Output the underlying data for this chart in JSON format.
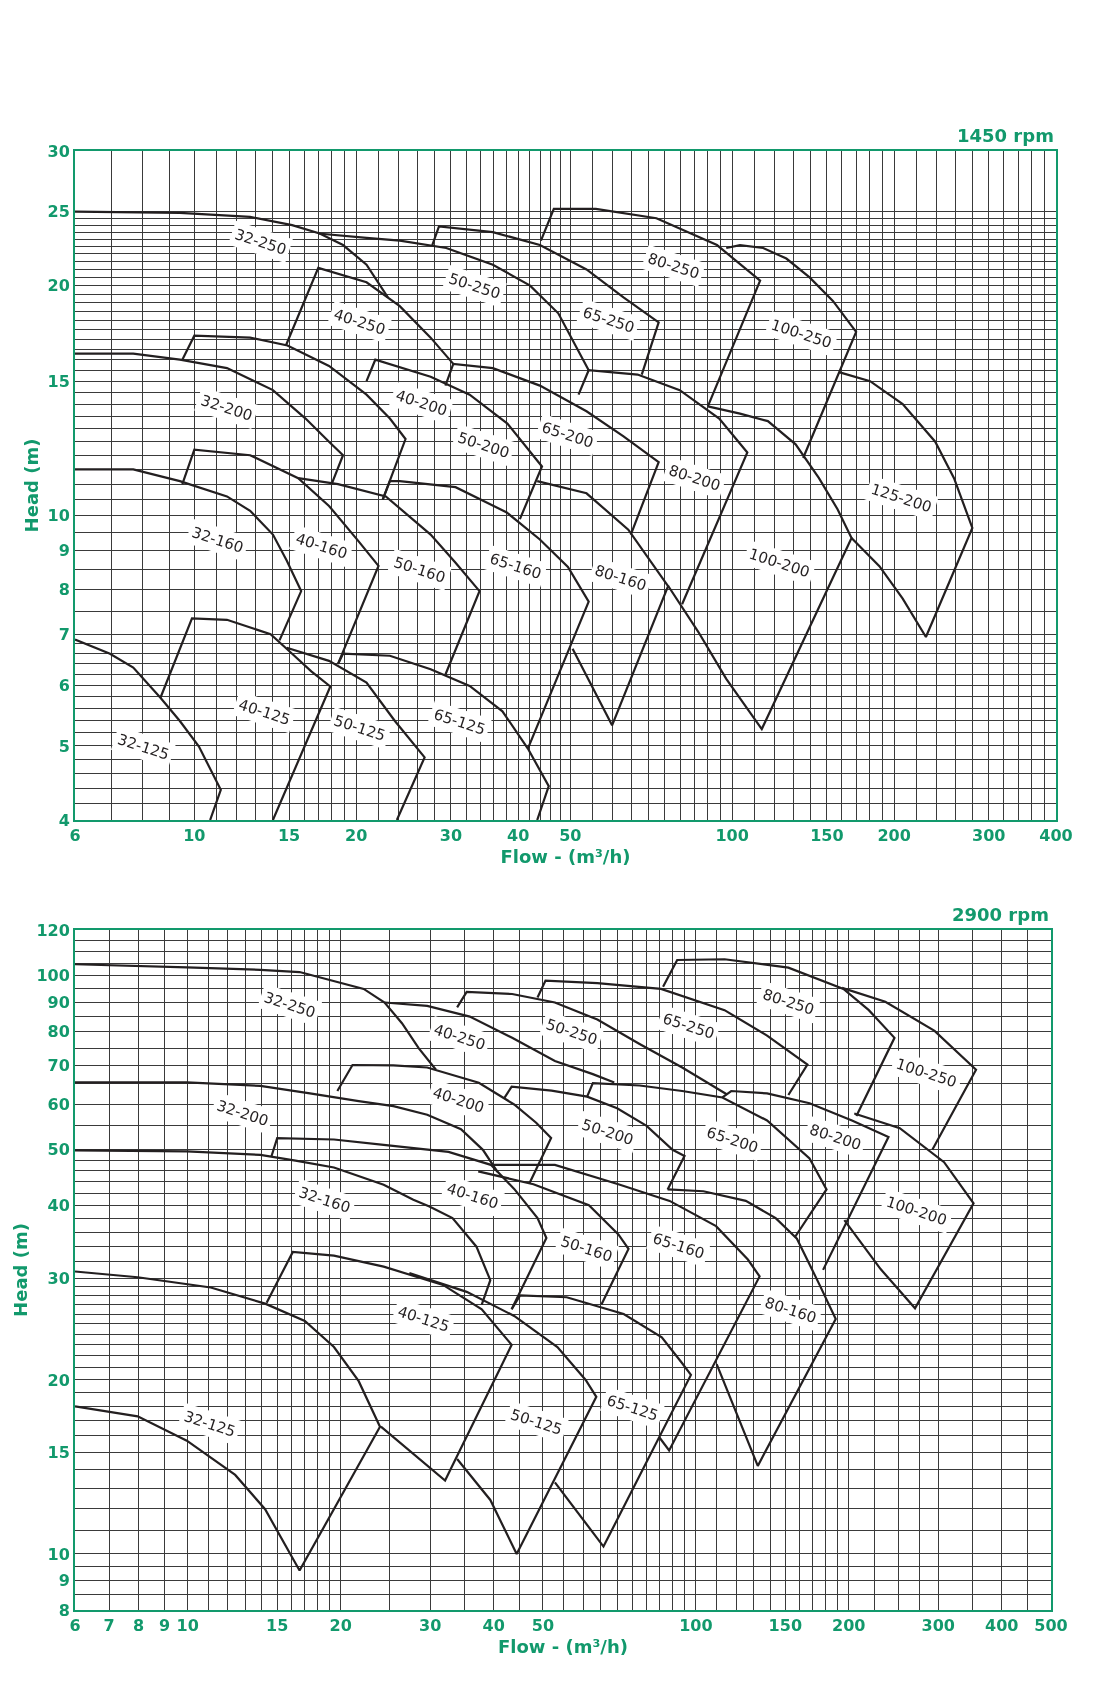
{
  "chart_data": [
    {
      "type": "line",
      "title": "1450 rpm",
      "xlabel": "Flow - (m³/h)",
      "ylabel": "Head (m)",
      "log": "xy",
      "xlim": [
        6,
        400
      ],
      "ylim": [
        4,
        30
      ],
      "xticks": [
        6,
        {
          "value": 7,
          "label": null
        },
        {
          "value": 8,
          "label": null
        },
        {
          "value": 9,
          "label": null
        },
        10,
        {
          "value": 11,
          "label": null
        },
        {
          "value": 12,
          "label": null
        },
        {
          "value": 13,
          "label": null
        },
        {
          "value": 14,
          "label": null
        },
        15,
        {
          "value": 16,
          "label": null
        },
        {
          "value": 17,
          "label": null
        },
        {
          "value": 18,
          "label": null
        },
        {
          "value": 19,
          "label": null
        },
        20,
        {
          "value": 22,
          "label": null
        },
        {
          "value": 24,
          "label": null
        },
        {
          "value": 26,
          "label": null
        },
        {
          "value": 28,
          "label": null
        },
        30,
        {
          "value": 32,
          "label": null
        },
        {
          "value": 34,
          "label": null
        },
        {
          "value": 36,
          "label": null
        },
        {
          "value": 38,
          "label": null
        },
        40,
        {
          "value": 42,
          "label": null
        },
        {
          "value": 44,
          "label": null
        },
        {
          "value": 46,
          "label": null
        },
        {
          "value": 48,
          "label": null
        },
        50,
        {
          "value": 55,
          "label": null
        },
        {
          "value": 60,
          "label": null
        },
        {
          "value": 65,
          "label": null
        },
        {
          "value": 70,
          "label": null
        },
        {
          "value": 75,
          "label": null
        },
        {
          "value": 80,
          "label": null
        },
        {
          "value": 85,
          "label": null
        },
        {
          "value": 90,
          "label": null
        },
        {
          "value": 95,
          "label": null
        },
        100,
        {
          "value": 110,
          "label": null
        },
        {
          "value": 120,
          "label": null
        },
        {
          "value": 130,
          "label": null
        },
        {
          "value": 140,
          "label": null
        },
        150,
        {
          "value": 160,
          "label": null
        },
        {
          "value": 170,
          "label": null
        },
        {
          "value": 180,
          "label": null
        },
        {
          "value": 190,
          "label": null
        },
        200,
        {
          "value": 220,
          "label": null
        },
        {
          "value": 240,
          "label": null
        },
        {
          "value": 260,
          "label": null
        },
        {
          "value": 280,
          "label": null
        },
        300,
        {
          "value": 320,
          "label": null
        },
        {
          "value": 340,
          "label": null
        },
        {
          "value": 360,
          "label": null
        },
        {
          "value": 380,
          "label": null
        },
        400
      ],
      "yticks": [
        4,
        {
          "value": 4.2,
          "label": null
        },
        {
          "value": 4.4,
          "label": null
        },
        {
          "value": 4.6,
          "label": null
        },
        {
          "value": 4.8,
          "label": null
        },
        5,
        {
          "value": 5.2,
          "label": null
        },
        {
          "value": 5.4,
          "label": null
        },
        {
          "value": 5.6,
          "label": null
        },
        {
          "value": 5.8,
          "label": null
        },
        6,
        {
          "value": 6.2,
          "label": null
        },
        {
          "value": 6.4,
          "label": null
        },
        {
          "value": 6.6,
          "label": null
        },
        {
          "value": 6.8,
          "label": null
        },
        7,
        {
          "value": 7.5,
          "label": null
        },
        8,
        {
          "value": 8.5,
          "label": null
        },
        9,
        {
          "value": 9.5,
          "label": null
        },
        10,
        {
          "value": 10.5,
          "label": null
        },
        {
          "value": 11,
          "label": null
        },
        {
          "value": 11.5,
          "label": null
        },
        {
          "value": 12,
          "label": null
        },
        {
          "value": 12.5,
          "label": null
        },
        {
          "value": 13,
          "label": null
        },
        {
          "value": 13.5,
          "label": null
        },
        {
          "value": 14,
          "label": null
        },
        {
          "value": 14.5,
          "label": null
        },
        15,
        {
          "value": 15.5,
          "label": null
        },
        {
          "value": 16,
          "label": null
        },
        {
          "value": 16.5,
          "label": null
        },
        {
          "value": 17,
          "label": null
        },
        {
          "value": 17.5,
          "label": null
        },
        {
          "value": 18,
          "label": null
        },
        {
          "value": 18.5,
          "label": null
        },
        {
          "value": 19,
          "label": null
        },
        {
          "value": 19.5,
          "label": null
        },
        20,
        {
          "value": 20.5,
          "label": null
        },
        {
          "value": 21,
          "label": null
        },
        {
          "value": 21.5,
          "label": null
        },
        {
          "value": 22,
          "label": null
        },
        {
          "value": 22.5,
          "label": null
        },
        {
          "value": 23,
          "label": null
        },
        {
          "value": 23.5,
          "label": null
        },
        {
          "value": 24,
          "label": null
        },
        {
          "value": 24.5,
          "label": null
        },
        25,
        30
      ],
      "grid": true,
      "legend": false,
      "series": [
        {
          "name": "32-250",
          "color": "#231f20",
          "x": [
            6,
            9.4,
            12.7,
            15.2,
            17.1,
            18.9,
            20.9,
            22.9
          ],
          "values": [
            25.0,
            24.9,
            24.6,
            24.0,
            23.4,
            22.6,
            21.3,
            19.3
          ]
        },
        {
          "name": "40-250",
          "color": "#231f20",
          "x": [
            14.8,
            17.0,
            20.9,
            24.1,
            27.5,
            30.3
          ],
          "values": [
            16.7,
            21.1,
            20.2,
            18.8,
            17.1,
            15.8
          ]
        },
        {
          "name": "50-250",
          "color": "#231f20",
          "x": [
            17.0,
            20.9,
            24.1,
            29.4,
            35.9,
            42.1,
            47.5,
            54.1
          ],
          "values": [
            23.4,
            23.1,
            22.9,
            22.4,
            21.3,
            20.0,
            18.4,
            15.5
          ]
        },
        {
          "name": "65-250",
          "color": "#231f20",
          "x": [
            27.7,
            28.5,
            35.9,
            43.9,
            53.6,
            62.8,
            73.0,
            67.9
          ],
          "values": [
            22.6,
            23.9,
            23.5,
            22.6,
            21.0,
            19.3,
            17.9,
            15.3
          ]
        },
        {
          "name": "80-250",
          "color": "#231f20",
          "x": [
            44.1,
            46.6,
            55.8,
            72.3,
            93.7,
            112.7,
            90.1
          ],
          "values": [
            22.9,
            25.2,
            25.2,
            24.5,
            22.6,
            20.3,
            13.9
          ]
        },
        {
          "name": "100-250",
          "color": "#231f20",
          "x": [
            97.5,
            103.4,
            114.2,
            126.1,
            139.3,
            153.9,
            170.0,
            135.5
          ],
          "values": [
            22.4,
            22.6,
            22.4,
            21.7,
            20.5,
            19.1,
            17.4,
            11.9
          ]
        },
        {
          "name": "32-200",
          "color": "#231f20",
          "x": [
            6,
            7.7,
            9.4,
            11.5,
            14.0,
            16.1,
            17.8,
            18.9,
            18.0
          ],
          "values": [
            16.3,
            16.3,
            16.0,
            15.6,
            14.6,
            13.4,
            12.5,
            12.0,
            11.0
          ]
        },
        {
          "name": "40-200",
          "color": "#231f20",
          "x": [
            9.5,
            10.0,
            12.7,
            14.9,
            17.8,
            20.9,
            23.1,
            24.7,
            22.4
          ],
          "values": [
            16.0,
            17.2,
            17.1,
            16.7,
            15.7,
            14.4,
            13.4,
            12.6,
            10.5
          ]
        },
        {
          "name": "50-200",
          "color": "#231f20",
          "x": [
            20.9,
            21.7,
            27.5,
            32.5,
            38.2,
            44.3,
            40.3
          ],
          "values": [
            15.0,
            16.0,
            15.2,
            14.4,
            13.2,
            11.6,
            9.9
          ]
        },
        {
          "name": "65-200",
          "color": "#231f20",
          "x": [
            29.3,
            30.3,
            35.9,
            43.9,
            53.6,
            62.8,
            73.0,
            64.8
          ],
          "values": [
            14.8,
            15.8,
            15.6,
            14.8,
            13.7,
            12.7,
            11.75,
            9.45
          ]
        },
        {
          "name": "80-200",
          "color": "#231f20",
          "x": [
            51.8,
            54.1,
            66.7,
            79.9,
            94.6,
            106.7,
            80.7
          ],
          "values": [
            14.4,
            15.5,
            15.3,
            14.6,
            13.4,
            12.1,
            7.66
          ]
        },
        {
          "name": "100-200",
          "color": "#231f20",
          "x": [
            90.1,
            103.4,
            116.5,
            131.2,
            145.0,
            157.0,
            166.7,
            113.5,
            97.5,
            86.6,
            76.0
          ],
          "values": [
            13.9,
            13.6,
            13.3,
            12.4,
            11.2,
            10.2,
            9.35,
            5.26,
            6.12,
            7.04,
            8.1
          ]
        },
        {
          "name": "125-200",
          "color": "#231f20",
          "x": [
            158.5,
            180.5,
            207.5,
            238.5,
            258.5,
            279.6,
            229.2,
            207.5,
            187.8,
            166.7
          ],
          "values": [
            15.4,
            15.0,
            14.0,
            12.5,
            11.2,
            9.64,
            6.94,
            7.79,
            8.59,
            9.35
          ]
        },
        {
          "name": "32-160",
          "color": "#231f20",
          "x": [
            6,
            7.7,
            9.4,
            11.5,
            12.7,
            14.0,
            14.85,
            15.8,
            14.4
          ],
          "values": [
            11.5,
            11.5,
            11.1,
            10.6,
            10.15,
            9.45,
            8.74,
            7.97,
            6.87
          ]
        },
        {
          "name": "40-160",
          "color": "#231f20",
          "x": [
            9.5,
            10.0,
            12.7,
            15.6,
            17.8,
            20.1,
            22.0,
            18.5
          ],
          "values": [
            11.0,
            12.2,
            12.0,
            11.2,
            10.3,
            9.3,
            8.6,
            6.4
          ]
        },
        {
          "name": "50-160",
          "color": "#231f20",
          "x": [
            15.6,
            18.5,
            22.7,
            27.5,
            30.6,
            33.9,
            29.3
          ],
          "values": [
            11.2,
            11.0,
            10.6,
            9.45,
            8.68,
            7.97,
            6.2
          ]
        },
        {
          "name": "65-160",
          "color": "#231f20",
          "x": [
            22.4,
            23.1,
            24.1,
            30.6,
            38.1,
            43.9,
            49.5,
            54.1,
            41.7
          ],
          "values": [
            10.5,
            11.1,
            11.1,
            10.9,
            10.1,
            9.31,
            8.57,
            7.72,
            4.96
          ]
        },
        {
          "name": "80-160",
          "color": "#231f20",
          "x": [
            43.4,
            53.6,
            64.1,
            76.0,
            59.8,
            50.5
          ],
          "values": [
            11.1,
            10.7,
            9.59,
            8.09,
            5.32,
            6.7
          ]
        },
        {
          "name": "32-125",
          "color": "#231f20",
          "x": [
            6,
            6.97,
            7.7,
            8.65,
            9.4,
            10.2,
            11.2,
            10.7
          ],
          "values": [
            6.89,
            6.6,
            6.33,
            5.78,
            5.39,
            4.99,
            4.38,
            4.0
          ]
        },
        {
          "name": "40-125",
          "color": "#231f20",
          "x": [
            8.65,
            9.9,
            11.5,
            13.86,
            15.2,
            16.5,
            17.9,
            14.0
          ],
          "values": [
            5.78,
            7.34,
            7.31,
            7.0,
            6.6,
            6.26,
            5.98,
            4.0
          ]
        },
        {
          "name": "50-125",
          "color": "#231f20",
          "x": [
            14.85,
            17.8,
            20.9,
            23.6,
            26.8,
            23.8
          ],
          "values": [
            6.72,
            6.46,
            6.05,
            5.39,
            4.83,
            4.0
          ]
        },
        {
          "name": "65-125",
          "color": "#231f20",
          "x": [
            18.5,
            18.9,
            23.1,
            27.5,
            32.5,
            37.4,
            41.7,
            45.6,
            43.4
          ],
          "values": [
            6.4,
            6.6,
            6.56,
            6.3,
            5.99,
            5.55,
            4.96,
            4.43,
            4.0
          ]
        }
      ]
    },
    {
      "type": "line",
      "title": "2900 rpm",
      "xlabel": "Flow - (m³/h)",
      "ylabel": "Head (m)",
      "log": "xy",
      "xlim": [
        6,
        500
      ],
      "ylim": [
        8,
        120
      ],
      "xticks": [
        6,
        7,
        8,
        9,
        10,
        {
          "value": 11,
          "label": null
        },
        {
          "value": 12,
          "label": null
        },
        {
          "value": 13,
          "label": null
        },
        {
          "value": 14,
          "label": null
        },
        15,
        {
          "value": 16,
          "label": null
        },
        {
          "value": 17,
          "label": null
        },
        {
          "value": 18,
          "label": null
        },
        {
          "value": 19,
          "label": null
        },
        20,
        {
          "value": 25,
          "label": null
        },
        30,
        {
          "value": 35,
          "label": null
        },
        40,
        {
          "value": 45,
          "label": null
        },
        50,
        {
          "value": 55,
          "label": null
        },
        {
          "value": 60,
          "label": null
        },
        {
          "value": 65,
          "label": null
        },
        {
          "value": 70,
          "label": null
        },
        {
          "value": 75,
          "label": null
        },
        {
          "value": 80,
          "label": null
        },
        {
          "value": 85,
          "label": null
        },
        {
          "value": 90,
          "label": null
        },
        {
          "value": 95,
          "label": null
        },
        100,
        {
          "value": 110,
          "label": null
        },
        {
          "value": 120,
          "label": null
        },
        {
          "value": 130,
          "label": null
        },
        {
          "value": 140,
          "label": null
        },
        150,
        {
          "value": 160,
          "label": null
        },
        {
          "value": 170,
          "label": null
        },
        {
          "value": 180,
          "label": null
        },
        {
          "value": 190,
          "label": null
        },
        200,
        {
          "value": 225,
          "label": null
        },
        {
          "value": 250,
          "label": null
        },
        {
          "value": 275,
          "label": null
        },
        300,
        {
          "value": 350,
          "label": null
        },
        400,
        {
          "value": 450,
          "label": null
        },
        500
      ],
      "yticks": [
        8,
        {
          "value": 8.5,
          "label": null
        },
        9,
        {
          "value": 9.5,
          "label": null
        },
        10,
        {
          "value": 11,
          "label": null
        },
        {
          "value": 12,
          "label": null
        },
        {
          "value": 13,
          "label": null
        },
        {
          "value": 14,
          "label": null
        },
        15,
        {
          "value": 16,
          "label": null
        },
        {
          "value": 17,
          "label": null
        },
        {
          "value": 18,
          "label": null
        },
        {
          "value": 19,
          "label": null
        },
        20,
        {
          "value": 21,
          "label": null
        },
        {
          "value": 22,
          "label": null
        },
        {
          "value": 23,
          "label": null
        },
        {
          "value": 24,
          "label": null
        },
        {
          "value": 25,
          "label": null
        },
        {
          "value": 26,
          "label": null
        },
        {
          "value": 27,
          "label": null
        },
        {
          "value": 28,
          "label": null
        },
        {
          "value": 29,
          "label": null
        },
        30,
        {
          "value": 32,
          "label": null
        },
        {
          "value": 34,
          "label": null
        },
        {
          "value": 36,
          "label": null
        },
        {
          "value": 38,
          "label": null
        },
        40,
        {
          "value": 42,
          "label": null
        },
        {
          "value": 44,
          "label": null
        },
        {
          "value": 46,
          "label": null
        },
        {
          "value": 48,
          "label": null
        },
        50,
        {
          "value": 55,
          "label": null
        },
        60,
        {
          "value": 65,
          "label": null
        },
        70,
        {
          "value": 75,
          "label": null
        },
        80,
        {
          "value": 85,
          "label": null
        },
        90,
        {
          "value": 95,
          "label": null
        },
        100,
        {
          "value": 105,
          "label": null
        },
        {
          "value": 110,
          "label": null
        },
        {
          "value": 115,
          "label": null
        },
        120
      ],
      "grid": true,
      "legend": false,
      "series": [
        {
          "name": "32-250",
          "color": "#231f20",
          "x": [
            6,
            9.96,
            13.9,
            16.6,
            22.2,
            24.4,
            26.4,
            28.5,
            30.8
          ],
          "values": [
            104.7,
            103.4,
            102.4,
            101.5,
            94.9,
            89.9,
            82.8,
            74.9,
            68.8
          ]
        },
        {
          "name": "40-250",
          "color": "#231f20",
          "x": [
            24.4,
            29.6,
            35.9,
            43.5,
            52.8,
            62.7,
            69.1
          ],
          "values": [
            89.9,
            88.7,
            85.0,
            78.1,
            71.2,
            67.6,
            65.4
          ]
        },
        {
          "name": "50-250",
          "color": "#231f20",
          "x": [
            33.9,
            35.4,
            43.5,
            52.8,
            64.0,
            77.5,
            94.0,
            115
          ],
          "values": [
            88.2,
            93.8,
            93.0,
            89.9,
            84.0,
            76.2,
            69.4,
            62.4
          ]
        },
        {
          "name": "65-250",
          "color": "#231f20",
          "x": [
            48.8,
            50.6,
            64.0,
            85.4,
            113.9,
            138.1,
            165.8,
            152.1
          ],
          "values": [
            91.7,
            98.1,
            97.1,
            94.9,
            87.2,
            78.8,
            70.2,
            62.2
          ]
        },
        {
          "name": "80-250",
          "color": "#231f20",
          "x": [
            86.2,
            91.9,
            113.9,
            152.1,
            195.2,
            219,
            246,
            207
          ],
          "values": [
            95.7,
            106.5,
            106.8,
            103.3,
            94.9,
            87.2,
            78.1,
            57.2
          ]
        },
        {
          "name": "100-250",
          "color": "#231f20",
          "x": [
            194,
            236,
            295,
            356,
            292
          ],
          "values": [
            95.3,
            90.2,
            80.3,
            68.8,
            50.0
          ]
        },
        {
          "name": "32-200",
          "color": "#231f20",
          "x": [
            6,
            9.96,
            13.9,
            17.4,
            21.7,
            25.4,
            29.6,
            34.5,
            38.1,
            40.7
          ],
          "values": [
            65.4,
            65.4,
            64.5,
            62.6,
            60.7,
            59.5,
            57.5,
            54.3,
            50.0,
            45.8
          ]
        },
        {
          "name": "40-200",
          "color": "#231f20",
          "x": [
            19.7,
            21.1,
            25.4,
            29.6,
            37.4,
            43.9,
            48.5,
            51.9,
            47.0
          ],
          "values": [
            63.2,
            70.1,
            70.0,
            69.4,
            65.3,
            59.9,
            55.7,
            52.4,
            43.7
          ]
        },
        {
          "name": "50-200",
          "color": "#231f20",
          "x": [
            42.0,
            43.4,
            52,
            61.1,
            70,
            80,
            90,
            95,
            88.0
          ],
          "values": [
            61.5,
            64.3,
            63.3,
            61.8,
            59,
            55,
            50,
            48.8,
            42.7
          ]
        },
        {
          "name": "65-200",
          "color": "#231f20",
          "x": [
            61.1,
            62.7,
            77.5,
            94.0,
            112.8,
            138.1,
            167.4,
            180.8,
            156.6
          ],
          "values": [
            61.8,
            65.2,
            64.6,
            63.2,
            61.6,
            56.2,
            48.3,
            42.7,
            35.3
          ]
        },
        {
          "name": "80-200",
          "color": "#231f20",
          "x": [
            112.8,
            117.4,
            138.1,
            167.4,
            202.9,
            239.4,
            178
          ],
          "values": [
            61.6,
            63.2,
            62.6,
            60.2,
            56.2,
            52.6,
            31.0
          ]
        },
        {
          "name": "100-200",
          "color": "#231f20",
          "x": [
            205,
            252,
            308,
            352,
            270,
            231,
            196
          ],
          "values": [
            57.8,
            54.5,
            47.6,
            40.4,
            26.6,
            31.1,
            37.8
          ]
        },
        {
          "name": "32-160",
          "color": "#231f20",
          "x": [
            6,
            9.96,
            13.9,
            16.3,
            19.4,
            24.3,
            27.8,
            29.9,
            33.2,
            37.0,
            39.4,
            37.9
          ],
          "values": [
            49.9,
            49.7,
            49.0,
            47.9,
            46.6,
            43.5,
            41.0,
            39.9,
            38.1,
            34.0,
            29.75,
            27.0
          ]
        },
        {
          "name": "40-160",
          "color": "#231f20",
          "x": [
            14.6,
            15.0,
            19.4,
            24.3,
            32.6,
            39.5,
            43.9,
            48.8,
            50.8,
            43.4
          ],
          "values": [
            48.6,
            52.4,
            52.1,
            51.0,
            49.6,
            47.1,
            42.8,
            38.1,
            35.2,
            26.5
          ]
        },
        {
          "name": "50-160",
          "color": "#231f20",
          "x": [
            37.3,
            47.9,
            61.6,
            70.4,
            73.7,
            65.2
          ],
          "values": [
            45.9,
            43.6,
            40.1,
            35.7,
            33.7,
            27.0
          ]
        },
        {
          "name": "65-160",
          "color": "#231f20",
          "x": [
            39.5,
            52.8,
            70.4,
            88.8,
            109.6,
            126.6,
            133.5,
            88.6,
            84.8
          ],
          "values": [
            47.1,
            47.1,
            43.6,
            40.8,
            36.9,
            32.3,
            30.2,
            15.1,
            15.9
          ]
        },
        {
          "name": "80-160",
          "color": "#231f20",
          "x": [
            88.0,
            103.5,
            125.4,
            143.6,
            158.1,
            175.2,
            188.5,
            132.4,
            109.9
          ],
          "values": [
            42.7,
            42.4,
            40.8,
            38.1,
            35.1,
            29.2,
            25.5,
            14.2,
            21.3
          ]
        },
        {
          "name": "32-125",
          "color": "#231f20",
          "x": [
            6,
            7.97,
            11.1,
            14.2,
            17.0,
            19.4,
            21.7,
            23.9,
            16.6,
            14.2,
            12.4,
            9.96,
            7.97,
            6
          ],
          "values": [
            30.8,
            30.1,
            28.9,
            27.1,
            25.3,
            22.8,
            19.9,
            16.6,
            9.36,
            11.95,
            13.7,
            15.7,
            17.3,
            18.0
          ]
        },
        {
          "name": "40-125",
          "color": "#231f20",
          "x": [
            14.3,
            16.1,
            19.4,
            24.3,
            31.8,
            37.9,
            43.4,
            32.1,
            24.0
          ],
          "values": [
            27.2,
            33.3,
            32.8,
            31.4,
            29.2,
            26.5,
            23.0,
            13.4,
            16.6
          ]
        },
        {
          "name": "50-125",
          "color": "#231f20",
          "x": [
            27.3,
            35.4,
            43.9,
            53.4,
            60.7,
            63.7,
            44.4,
            39.4,
            33.9
          ],
          "values": [
            30.6,
            28.4,
            25.8,
            22.8,
            20.0,
            18.7,
            10.0,
            12.4,
            14.6
          ]
        },
        {
          "name": "65-125",
          "color": "#231f20",
          "x": [
            43.4,
            45.1,
            55.7,
            72.1,
            85.7,
            93.5,
            97.8,
            65.8,
            52.8
          ],
          "values": [
            26.5,
            28.0,
            27.8,
            26.0,
            23.7,
            21.5,
            20.4,
            10.3,
            13.3
          ]
        }
      ]
    }
  ]
}
